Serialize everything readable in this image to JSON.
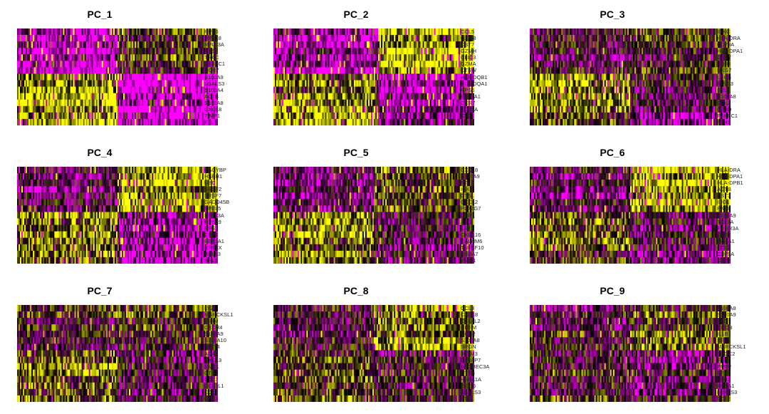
{
  "colors": {
    "low": "#ff00ff",
    "mid": "#000000",
    "high": "#ffff00"
  },
  "chart_data": [
    {
      "type": "heatmap",
      "title": "PC_1",
      "genes": [
        "RPS6",
        "RPS18",
        "RPL13A",
        "RPS2",
        "TRAC",
        "PABPC1",
        "CCR7",
        "S100A9",
        "LGALS3",
        "S100A4",
        "ACTB",
        "S100A8",
        "CXCL8",
        "TIMP1",
        "FTL"
      ],
      "split_col": 0.5,
      "split_row": 7,
      "block_means": [
        [
          -0.75,
          0.15
        ],
        [
          0.7,
          -0.9
        ]
      ]
    },
    {
      "type": "heatmap",
      "title": "PC_2",
      "genes": [
        "CCL5",
        "GZMB",
        "CST7",
        "GZMH",
        "CLIC3",
        "GZMA",
        "CTSW",
        "HLA-DQB1",
        "HLA-DQA1",
        "RPS6",
        "EEF1A1",
        "CCR7",
        "CD79A",
        "IGKC",
        "CD74"
      ],
      "split_col": 0.52,
      "split_row": 7,
      "block_means": [
        [
          -0.65,
          0.75
        ],
        [
          0.55,
          -0.6
        ]
      ]
    },
    {
      "type": "heatmap",
      "title": "PC_3",
      "genes": [
        "IGKC",
        "HLA-DRA",
        "CD79A",
        "HLA-DPA1",
        "GNLY",
        "CD83",
        "NKG7",
        "LDHB",
        "RPL13",
        "SELL",
        "S100A8",
        "CCL2",
        "CD3D",
        "PABPC1",
        "FTH1"
      ],
      "split_col": 0.5,
      "split_row": 7,
      "block_means": [
        [
          -0.2,
          0.0
        ],
        [
          0.45,
          -0.35
        ]
      ]
    },
    {
      "type": "heatmap",
      "title": "PC_4",
      "genes": [
        "CACYBP",
        "HSPH1",
        "UBC",
        "SRSF2",
        "SRSF7",
        "GADD45B",
        "YPEL5",
        "RPL13A",
        "RPS19",
        "RPS3",
        "CD74",
        "EEF1A1",
        "RPS4X",
        "RPL13",
        "RPL3"
      ],
      "split_col": 0.5,
      "split_row": 7,
      "block_means": [
        [
          -0.45,
          0.55
        ],
        [
          0.5,
          -0.55
        ]
      ]
    },
    {
      "type": "heatmap",
      "title": "PC_5",
      "genes": [
        "CXCL8",
        "S100A9",
        "FTL",
        "IGKC",
        "CTSL",
        "CXCL2",
        "PLA2G7",
        "GBP1",
        "AIF1",
        "LST1",
        "CXCL16",
        "CALHM6",
        "TNFSF10",
        "MS4A7",
        "VMO1"
      ],
      "split_col": 0.5,
      "split_row": 7,
      "block_means": [
        [
          -0.4,
          0.25
        ],
        [
          0.45,
          -0.3
        ]
      ]
    },
    {
      "type": "heatmap",
      "title": "PC_6",
      "genes": [
        "HLA-DRA",
        "HLA-DPA1",
        "HLA-DPB1",
        "ACTB",
        "CST3",
        "IDO1",
        "PKIB",
        "S100A9",
        "TCL1A",
        "FCGR3A",
        "CD37",
        "MS4A1",
        "CCL2",
        "CD79A",
        "IGHM"
      ],
      "split_col": 0.5,
      "split_row": 7,
      "block_means": [
        [
          -0.3,
          0.7
        ],
        [
          0.2,
          -0.35
        ]
      ]
    },
    {
      "type": "heatmap",
      "title": "PC_7",
      "genes": [
        "LYZ",
        "MARCKSL1",
        "IGHM",
        "CXCR4",
        "S100A9",
        "S100A10",
        "DDIT4",
        "ADA",
        "CXCL3",
        "NME1",
        "CTSL",
        "CCL7",
        "CCL3L1",
        "CCL2",
        "CCL3"
      ],
      "split_col": 0.5,
      "split_row": 7,
      "block_means": [
        [
          -0.1,
          0.05
        ],
        [
          0.3,
          -0.25
        ]
      ]
    },
    {
      "type": "heatmap",
      "title": "PC_8",
      "genes": [
        "CCL3",
        "CXCL8",
        "CCL4L2",
        "CREM",
        "GOS2",
        "S100A8",
        "SRGN",
        "IFITM3",
        "GIMAP7",
        "APOBEC3A",
        "CTSB",
        "HSPA1A",
        "ISG15",
        "LGALS3",
        "FTL"
      ],
      "split_col": 0.5,
      "split_row": 7,
      "block_means": [
        [
          -0.3,
          0.35
        ],
        [
          0.15,
          -0.2
        ]
      ]
    },
    {
      "type": "heatmap",
      "title": "PC_9",
      "genes": [
        "S100A8",
        "S100A9",
        "LYZ",
        "CLIC3",
        "IL1B",
        "SELL",
        "MARCKSL1",
        "TRGC2",
        "FYN",
        "PPBP",
        "PF27",
        "FTH1",
        "ANXA1",
        "LGALS3",
        "CCL2"
      ],
      "split_col": 0.5,
      "split_row": 7,
      "block_means": [
        [
          -0.1,
          0.35
        ],
        [
          0.05,
          -0.2
        ]
      ]
    }
  ]
}
